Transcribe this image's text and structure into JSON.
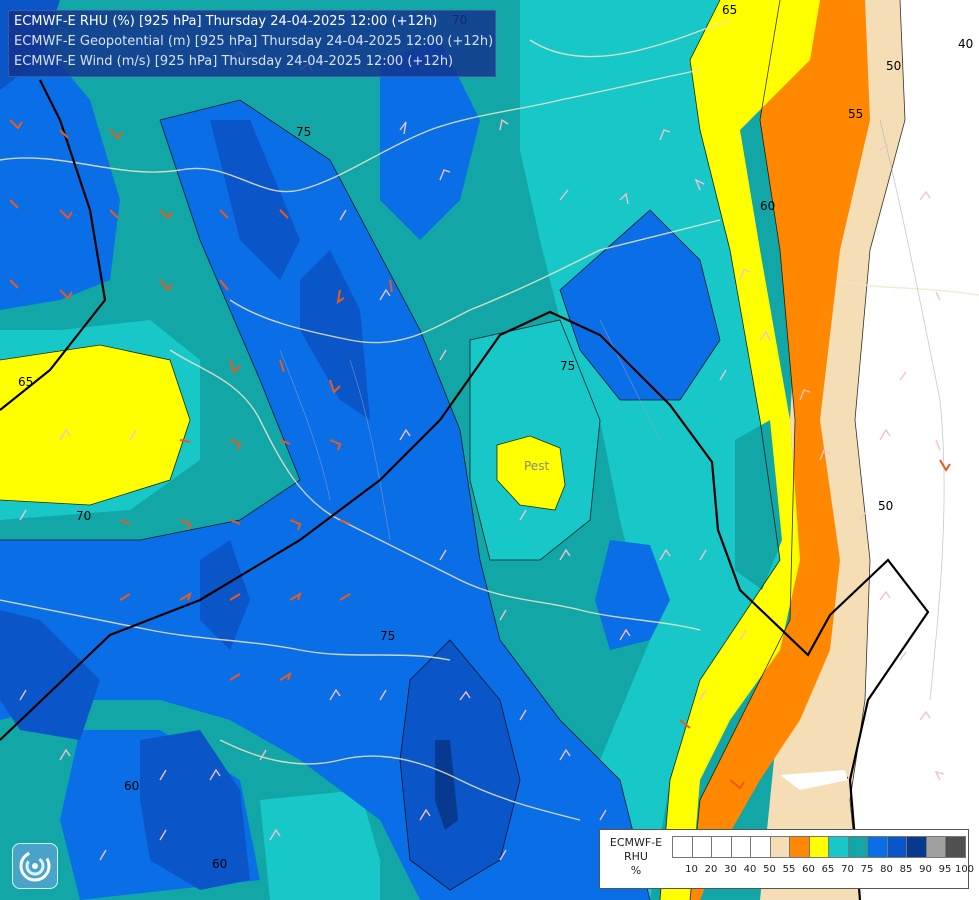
{
  "title": {
    "line1": "ECMWF-E RHU (%) [925 hPa] Thursday 24-04-2025 12:00 (+12h)",
    "line2": "ECMWF-E Geopotential (m) [925 hPa] Thursday 24-04-2025 12:00 (+12h)",
    "line3": "ECMWF-E Wind (m/s) [925 hPa] Thursday 24-04-2025 12:00 (+12h)"
  },
  "map": {
    "city_label": "Pest",
    "contour_labels": [
      "70",
      "75",
      "75",
      "65",
      "70",
      "75",
      "60",
      "60",
      "65",
      "50",
      "55",
      "60",
      "40",
      "50"
    ],
    "colors": {
      "rhu_60_65": "#ffff00",
      "rhu_65_70": "#18c8c8",
      "rhu_70_75": "#12a6a6",
      "rhu_75_80": "#0a6ee6",
      "rhu_80_85": "#0a55c8",
      "rhu_85_90": "#073a8e",
      "rhu_55_60": "#ff8800",
      "rhu_50_55": "#f5deb5",
      "rhu_low": "#ffffff",
      "geopotential_line": "#000000",
      "borders": "#f0e6c8"
    }
  },
  "legend": {
    "title_lines": [
      "ECMWF-E",
      "RHU",
      "%"
    ],
    "swatch_colors": [
      "#ffffff",
      "#ffffff",
      "#ffffff",
      "#ffffff",
      "#ffffff",
      "#f5deb5",
      "#ff8800",
      "#ffff00",
      "#18c8c8",
      "#12a6a6",
      "#0a6ee6",
      "#0a55c8",
      "#073a8e",
      "#a0a0a0",
      "#505050"
    ],
    "ticks": [
      "10",
      "20",
      "30",
      "40",
      "50",
      "55",
      "60",
      "65",
      "70",
      "75",
      "80",
      "85",
      "90",
      "95",
      "100"
    ]
  },
  "logo_icon": "ecmwf-swirl-logo-icon"
}
